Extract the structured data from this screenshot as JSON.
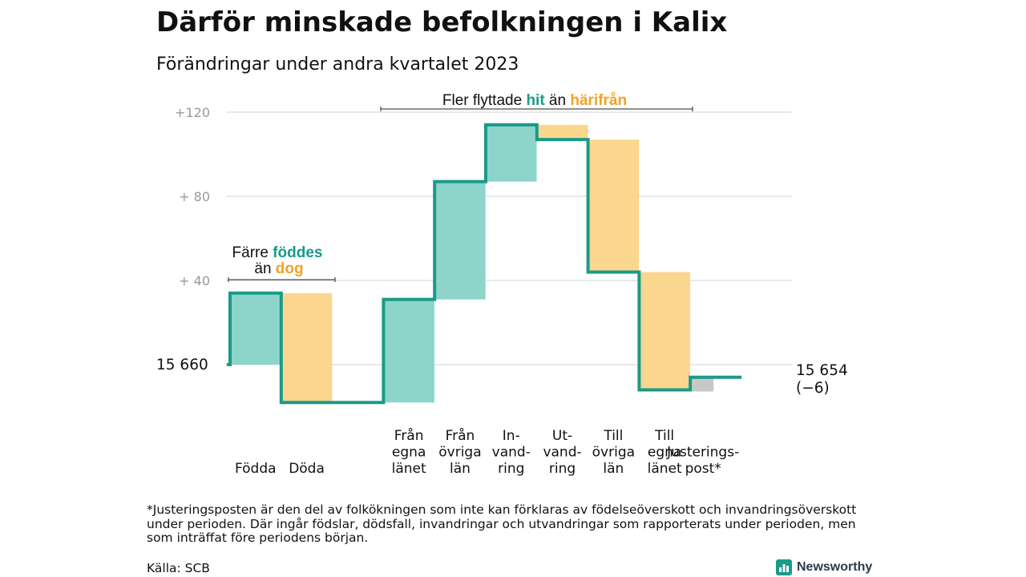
{
  "title": "Därför minskade befolkningen i Kalix",
  "subtitle": "Förändringar under andra kvartalet 2023",
  "footnote": "*Justeringsposten är den del av folkökningen som inte kan förklaras av födelseöverskott och invandringsöverskott under perioden. Där ingår födslar, dödsfall, invandringar och utvandringar som rapporterats under perioden, men som inträffat före periodens början.",
  "source": "Källa: SCB",
  "logo": {
    "name": "Newsworthy",
    "icon": "bar-chart-icon"
  },
  "colors": {
    "positive": "#8dd5cb",
    "negative": "#fbd68e",
    "adjust": "#c8c8c8",
    "line": "#1a9a88",
    "grid": "#dcdcdc"
  },
  "chart_data": {
    "type": "waterfall",
    "start_label": "15  660",
    "end_label": [
      "15 654",
      "(−6)"
    ],
    "y_ticks": [
      {
        "value": 40,
        "label": "+  40"
      },
      {
        "value": 80,
        "label": "+  80"
      },
      {
        "value": 120,
        "label": "+120"
      }
    ],
    "ylim": [
      -22,
      125
    ],
    "grid": true,
    "categories": [
      {
        "label": [
          "Födda"
        ],
        "value": 34,
        "kind": "positive"
      },
      {
        "label": [
          "Döda"
        ],
        "value": -52,
        "kind": "negative"
      },
      {
        "label": [],
        "value": 0,
        "kind": "gap"
      },
      {
        "label": [
          "Från",
          "egna",
          "länet"
        ],
        "value": 49,
        "kind": "positive"
      },
      {
        "label": [
          "Från",
          "övriga",
          "län"
        ],
        "value": 56,
        "kind": "positive"
      },
      {
        "label": [
          "In-",
          "vand-",
          "ring"
        ],
        "value": 27,
        "kind": "positive"
      },
      {
        "label": [
          "Ut-",
          "vand-",
          "ring"
        ],
        "value": -7,
        "kind": "negative"
      },
      {
        "label": [
          "Till",
          "övriga",
          "län"
        ],
        "value": -63,
        "kind": "negative"
      },
      {
        "label": [
          "Till",
          "egna",
          "länet"
        ],
        "value": -56,
        "kind": "negative"
      },
      {
        "label": [
          "Justerings-",
          "post*"
        ],
        "value": 6,
        "kind": "adjust"
      }
    ],
    "annotations": [
      {
        "parts": [
          {
            "text": "Färre ",
            "style": "plain"
          },
          {
            "text": "föddes",
            "style": "green"
          }
        ],
        "parts2": [
          {
            "text": "än ",
            "style": "plain"
          },
          {
            "text": "dog",
            "style": "orange"
          }
        ],
        "span": [
          0,
          1
        ]
      },
      {
        "parts": [
          {
            "text": "Fler flyttade ",
            "style": "plain"
          },
          {
            "text": "hit",
            "style": "green"
          },
          {
            "text": "  än ",
            "style": "plain"
          },
          {
            "text": "härifrån",
            "style": "orange"
          }
        ],
        "span": [
          3,
          8
        ]
      }
    ]
  }
}
